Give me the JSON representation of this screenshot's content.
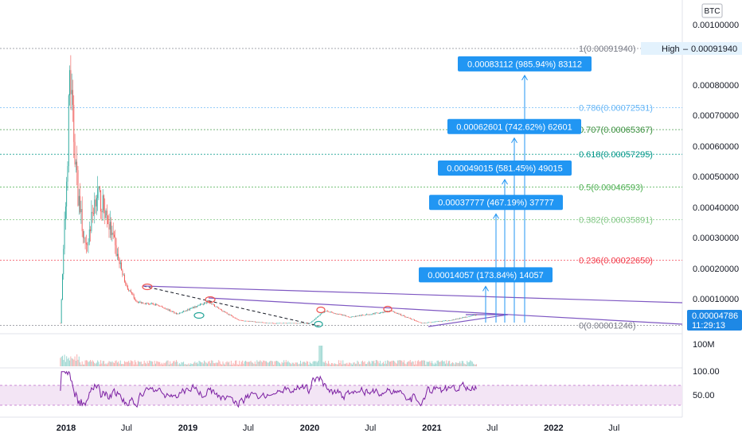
{
  "currency_badge": "BTC",
  "price_axis": {
    "ticks": [
      "0.00100000",
      "0.00080000",
      "0.00070000",
      "0.00060000",
      "0.00050000",
      "0.00040000",
      "0.00030000",
      "0.00020000",
      "0.00010000"
    ],
    "high_label": "High",
    "high_value": "0.00091940",
    "current_price": "0.00004786",
    "countdown": "11:29:13"
  },
  "volume_axis": {
    "label": "100M"
  },
  "rsi_axis": {
    "ticks": [
      "100.00",
      "50.00"
    ]
  },
  "time_axis": {
    "labels": [
      {
        "text": "2018",
        "bold": true
      },
      {
        "text": "Jul",
        "bold": false
      },
      {
        "text": "2019",
        "bold": true
      },
      {
        "text": "Jul",
        "bold": false
      },
      {
        "text": "2020",
        "bold": true
      },
      {
        "text": "Jul",
        "bold": false
      },
      {
        "text": "2021",
        "bold": true
      },
      {
        "text": "Jul",
        "bold": false
      },
      {
        "text": "2022",
        "bold": true
      },
      {
        "text": "Jul",
        "bold": false
      }
    ]
  },
  "colors": {
    "up": "#26a69a",
    "down": "#ef5350",
    "rsi_line": "#7b1fa2",
    "rsi_band": "#f3e5f5",
    "trendline": "#7e57c2",
    "projection_arrow": "#2196f3",
    "label_box": "#2196f3",
    "price_tag": "#1e88e5"
  },
  "fib_levels": [
    {
      "label": "1(0.00091940)",
      "color": "#787b86"
    },
    {
      "label": "0.786(0.00072531)",
      "color": "#64b5f6"
    },
    {
      "label": "0.707(0.00065367)",
      "color": "#388e3c"
    },
    {
      "label": "0.618(0.00057295)",
      "color": "#009688"
    },
    {
      "label": "0.5(0.00046593)",
      "color": "#4caf50"
    },
    {
      "label": "0.382(0.00035891)",
      "color": "#81c784"
    },
    {
      "label": "0.236(0.00022650)",
      "color": "#f23645"
    },
    {
      "label": "0(0.00001246)",
      "color": "#787b86"
    }
  ],
  "projection_labels": [
    "0.00083112 (985.94%) 83112",
    "0.00062601 (742.62%) 62601",
    "0.00049015 (581.45%) 49015",
    "0.00037777 (467.19%) 37777",
    "0.00014057 (173.84%) 14057"
  ],
  "chart_data": {
    "type": "candlestick",
    "pair_currency": "BTC",
    "x_range": [
      "2017-12",
      "2022-10"
    ],
    "y_scale": "linear",
    "y_range": [
      0,
      0.001
    ],
    "series_close_approx": [
      {
        "date": "2017-12-15",
        "close": 2e-05
      },
      {
        "date": "2018-01-05",
        "close": 0.00055
      },
      {
        "date": "2018-01-12",
        "close": 0.00085
      },
      {
        "date": "2018-01-20",
        "close": 0.0007
      },
      {
        "date": "2018-02-05",
        "close": 0.00045
      },
      {
        "date": "2018-03-01",
        "close": 0.00025
      },
      {
        "date": "2018-04-01",
        "close": 0.00045
      },
      {
        "date": "2018-05-01",
        "close": 0.00038
      },
      {
        "date": "2018-06-01",
        "close": 0.00025
      },
      {
        "date": "2018-07-01",
        "close": 0.00014
      },
      {
        "date": "2018-08-01",
        "close": 9e-05
      },
      {
        "date": "2018-10-01",
        "close": 8e-05
      },
      {
        "date": "2018-12-01",
        "close": 5e-05
      },
      {
        "date": "2019-03-01",
        "close": 9e-05
      },
      {
        "date": "2019-06-01",
        "close": 3e-05
      },
      {
        "date": "2019-09-01",
        "close": 2e-05
      },
      {
        "date": "2020-01-01",
        "close": 2e-05
      },
      {
        "date": "2020-02-15",
        "close": 6e-05
      },
      {
        "date": "2020-05-01",
        "close": 4e-05
      },
      {
        "date": "2020-09-01",
        "close": 6e-05
      },
      {
        "date": "2020-12-01",
        "close": 2e-05
      },
      {
        "date": "2021-03-01",
        "close": 3e-05
      },
      {
        "date": "2021-05-15",
        "close": 4.786e-05
      }
    ],
    "high": 0.0009194,
    "low": 1.246e-05,
    "last": 4.786e-05,
    "fibonacci": [
      {
        "ratio": 1,
        "price": 0.0009194
      },
      {
        "ratio": 0.786,
        "price": 0.00072531
      },
      {
        "ratio": 0.707,
        "price": 0.00065367
      },
      {
        "ratio": 0.618,
        "price": 0.00057295
      },
      {
        "ratio": 0.5,
        "price": 0.00046593
      },
      {
        "ratio": 0.382,
        "price": 0.00035891
      },
      {
        "ratio": 0.236,
        "price": 0.0002265
      },
      {
        "ratio": 0,
        "price": 1.246e-05
      }
    ],
    "targets": [
      {
        "price": 0.00083112,
        "pct": 985.94,
        "ticks": 83112
      },
      {
        "price": 0.00062601,
        "pct": 742.62,
        "ticks": 62601
      },
      {
        "price": 0.00049015,
        "pct": 581.45,
        "ticks": 49015
      },
      {
        "price": 0.00037777,
        "pct": 467.19,
        "ticks": 37777
      },
      {
        "price": 0.00014057,
        "pct": 173.84,
        "ticks": 14057
      }
    ],
    "rsi_axis": [
      0,
      100
    ],
    "legend": "none",
    "grid": false
  }
}
